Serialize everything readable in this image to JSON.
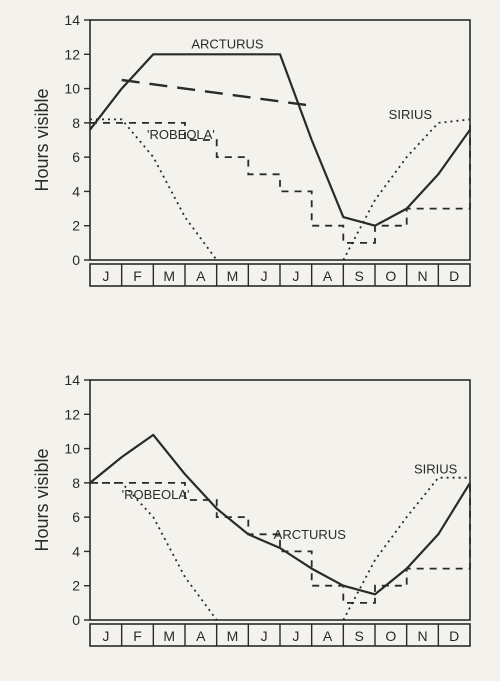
{
  "global": {
    "background": "#f4f2ed",
    "axis_color": "#2a2a2a",
    "font_family": "Arial"
  },
  "top_chart": {
    "type": "line",
    "ylabel": "Hours visible",
    "label_fontsize": 18,
    "ylim": [
      0,
      14
    ],
    "yticks": [
      0,
      2,
      4,
      6,
      8,
      10,
      12,
      14
    ],
    "x_categories": [
      "J",
      "F",
      "M",
      "A",
      "M",
      "J",
      "J",
      "A",
      "S",
      "O",
      "N",
      "D"
    ],
    "tick_fontsize": 14,
    "labels": {
      "arcturus": "ARCTURUS",
      "robeola": "'ROBEOLA'",
      "sirius": "SIRIUS"
    },
    "label_fontsize_series": 13,
    "series": {
      "arcturus_solid": {
        "style": "solid",
        "color": "#2a2a2a",
        "y": [
          7.6,
          10.0,
          12.0,
          12.0,
          12.0,
          12.0,
          12.0,
          7.0,
          2.5,
          2.0,
          3.0,
          5.0,
          7.6
        ]
      },
      "arcturus_longdash_cap": {
        "style": "longdash",
        "color": "#2a2a2a",
        "x": [
          1.0,
          7.0
        ],
        "y": [
          10.5,
          9.0
        ]
      },
      "sirius_dotted": {
        "style": "dotted",
        "color": "#2a2a2a",
        "y": [
          8.2,
          8.2,
          6.0,
          2.5,
          0.0,
          null,
          null,
          null,
          0.0,
          3.5,
          6.0,
          8.0,
          8.2
        ]
      },
      "robeola_dashed_step": {
        "style": "dashed-step",
        "color": "#2a2a2a",
        "y": [
          8.0,
          8.0,
          8.0,
          7.0,
          6.0,
          5.0,
          4.0,
          2.0,
          1.0,
          2.0,
          3.0,
          3.0,
          8.0
        ]
      }
    }
  },
  "bottom_chart": {
    "type": "line",
    "ylabel": "Hours visible",
    "label_fontsize": 18,
    "ylim": [
      0,
      14
    ],
    "yticks": [
      0,
      2,
      4,
      6,
      8,
      10,
      12,
      14
    ],
    "x_categories": [
      "J",
      "F",
      "M",
      "A",
      "M",
      "J",
      "J",
      "A",
      "S",
      "O",
      "N",
      "D"
    ],
    "tick_fontsize": 14,
    "labels": {
      "arcturus": "ARCTURUS",
      "robeola": "'ROBEOLA'",
      "sirius": "SIRIUS"
    },
    "label_fontsize_series": 13,
    "series": {
      "arcturus_solid": {
        "style": "solid",
        "color": "#2a2a2a",
        "y": [
          8.0,
          9.5,
          10.8,
          8.5,
          6.5,
          5.0,
          4.2,
          3.0,
          2.0,
          1.5,
          3.0,
          5.0,
          8.0
        ]
      },
      "sirius_dotted": {
        "style": "dotted",
        "color": "#2a2a2a",
        "y": [
          8.0,
          8.0,
          6.0,
          2.5,
          0.0,
          null,
          null,
          null,
          0.0,
          3.5,
          6.0,
          8.3,
          8.3
        ]
      },
      "robeola_dashed_step": {
        "style": "dashed-step",
        "color": "#2a2a2a",
        "y": [
          8.0,
          8.0,
          8.0,
          7.0,
          6.0,
          5.0,
          4.0,
          2.0,
          1.0,
          2.0,
          3.0,
          3.0,
          8.0
        ]
      }
    }
  }
}
